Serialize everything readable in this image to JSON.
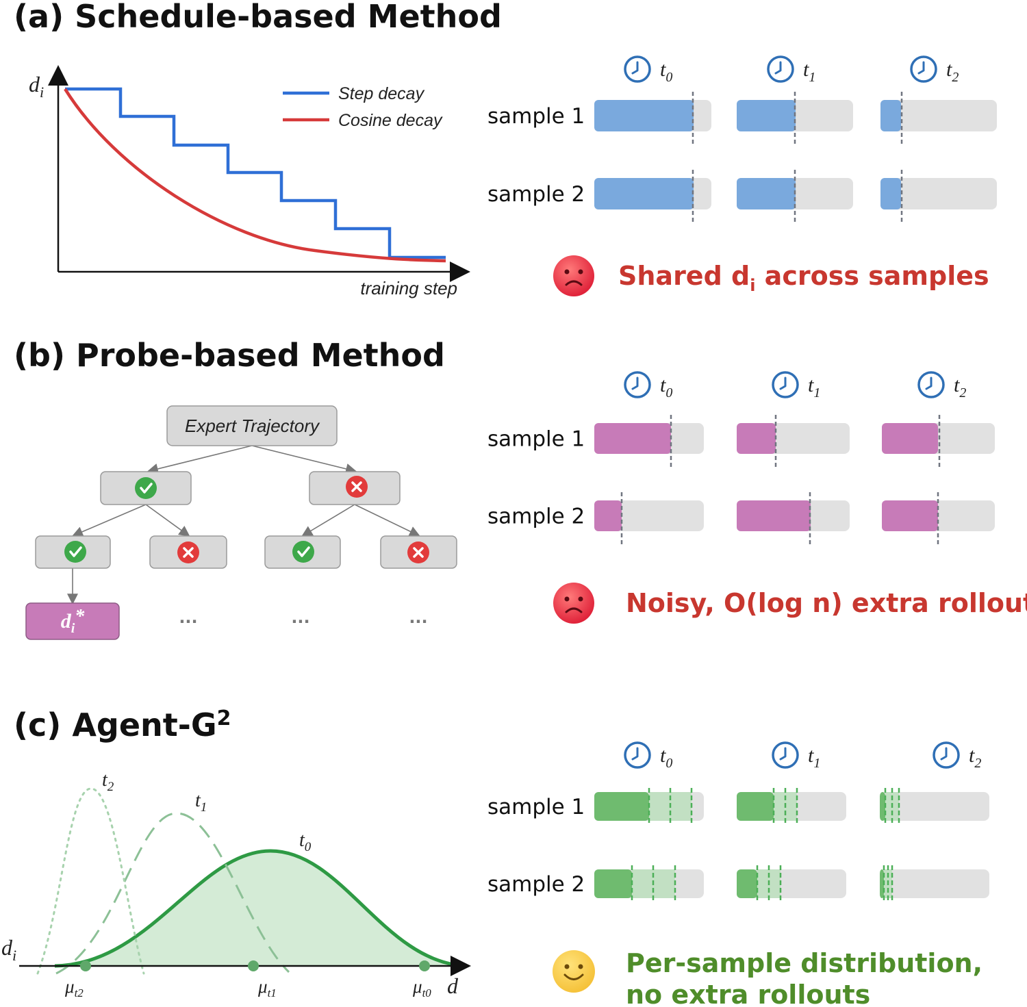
{
  "panel_a": {
    "title": "(a) Schedule-based Method",
    "y_axis_label": "d",
    "y_axis_sub": "i",
    "x_axis_label": "training step",
    "legend": [
      {
        "label": "Step decay",
        "color": "#2f6fd6"
      },
      {
        "label": "Cosine decay",
        "color": "#d63a3a"
      }
    ],
    "verdict_pre": "Shared d",
    "verdict_sub": "i",
    "verdict_post": " across samples",
    "verdict_color": "#c8372f",
    "face": "sad-face-icon"
  },
  "panel_b": {
    "title": "(b) Probe-based Method",
    "root_label": "Expert Trajectory",
    "result_main": "d",
    "result_sub": "i",
    "result_sup": "*",
    "ellipsis": "...",
    "verdict": "Noisy, O(log n) extra rollouts",
    "verdict_color": "#c8372f",
    "face": "sad-face-icon"
  },
  "panel_c": {
    "title_main": "(c) Agent-G",
    "title_sup": "2",
    "curve_labels": [
      {
        "main": "t",
        "sub": "2"
      },
      {
        "main": "t",
        "sub": "1"
      },
      {
        "main": "t",
        "sub": "0"
      }
    ],
    "y_axis_label": "d",
    "y_axis_sub": "i",
    "x_axis_label": "d",
    "mu_labels": [
      {
        "main": "μ",
        "sub": "t2"
      },
      {
        "main": "μ",
        "sub": "t1"
      },
      {
        "main": "μ",
        "sub": "t0"
      }
    ],
    "verdict_line1": "Per-sample distribution,",
    "verdict_line2": "no extra rollouts",
    "verdict_color": "#4f8d2a",
    "face": "smile-face-icon"
  },
  "timesteps": [
    {
      "main": "t",
      "sub": "0"
    },
    {
      "main": "t",
      "sub": "1"
    },
    {
      "main": "t",
      "sub": "2"
    }
  ],
  "samples": [
    "sample 1",
    "sample 2"
  ],
  "colors": {
    "blue_fill": "#7aa9dd",
    "pink_fill": "#c77bb8",
    "green_fill": "#6fbb6f",
    "track": "#e1e1e1",
    "clock": "#2f6fb5"
  }
}
